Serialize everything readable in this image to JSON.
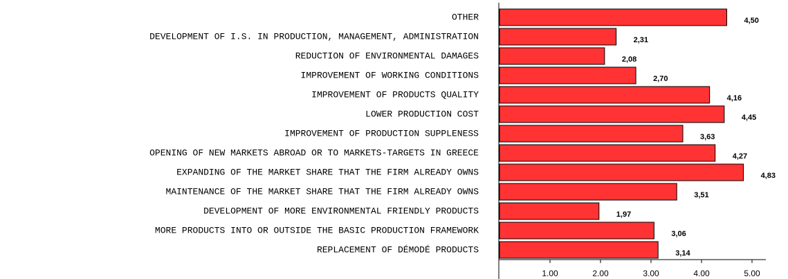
{
  "chart_data": {
    "type": "bar",
    "orientation": "horizontal",
    "categories": [
      "OTHER",
      "DEVELOPMENT OF I.S. IN PRODUCTION, MANAGEMENT, ADMINISTRATION",
      "REDUCTION OF ENVIRONMENTAL DAMAGES",
      "IMPROVEMENT OF WORKING CONDITIONS",
      "IMPROVEMENT OF PRODUCTS QUALITY",
      "LOWER PRODUCTION COST",
      "IMPROVEMENT OF PRODUCTION SUPPLENESS",
      "OPENING OF NEW MARKETS ABROAD OR TO MARKETS-TARGETS IN GREECE",
      "EXPANDING OF THE MARKET SHARE THAT THE FIRM ALREADY OWNS",
      "MAINTENANCE OF THE MARKET SHARE THAT THE FIRM ALREADY OWNS",
      "DEVELOPMENT OF MORE ENVIRONMENTAL FRIENDLY PRODUCTS",
      "MORE PRODUCTS INTO OR OUTSIDE THE BASIC PRODUCTION FRAMEWORK",
      "REPLACEMENT OF DÉMODÉ PRODUCTS"
    ],
    "values": [
      4.5,
      2.31,
      2.08,
      2.7,
      4.16,
      4.45,
      3.63,
      4.27,
      4.83,
      3.51,
      1.97,
      3.06,
      3.14
    ],
    "value_labels": [
      "4,50",
      "2,31",
      "2,08",
      "2,70",
      "4,16",
      "4,45",
      "3,63",
      "4,27",
      "4,83",
      "3,51",
      "1,97",
      "3,06",
      "3,14"
    ],
    "color": "#ff3333",
    "xlim": [
      0,
      5
    ],
    "xticks": [
      {
        "value": 1,
        "label": "1.00"
      },
      {
        "value": 2,
        "label": "2.00"
      },
      {
        "value": 3,
        "label": "3.00"
      },
      {
        "value": 4,
        "label": "4.00"
      },
      {
        "value": 5,
        "label": "5.00"
      }
    ]
  }
}
